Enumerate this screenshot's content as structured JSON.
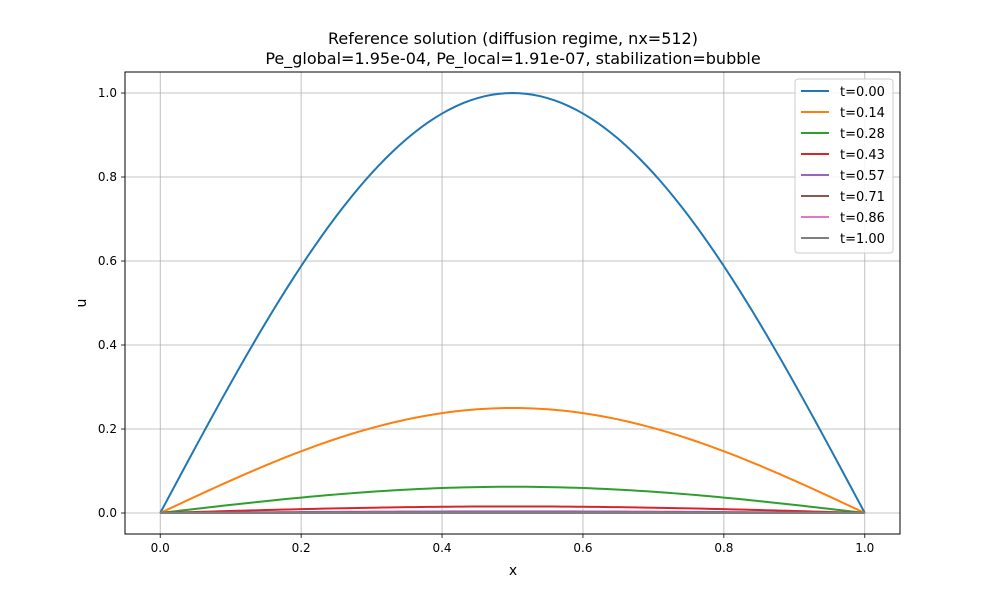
{
  "chart_data": {
    "type": "line",
    "title_line1": "Reference solution (diffusion regime, nx=512)",
    "title_line2": "Pe_global=1.95e-04, Pe_local=1.91e-07, stabilization=bubble",
    "xlabel": "x",
    "ylabel": "u",
    "xlim": [
      -0.05,
      1.05
    ],
    "ylim": [
      -0.05,
      1.05
    ],
    "grid": true,
    "legend_position": "top-right",
    "xticks": [
      0.0,
      0.2,
      0.4,
      0.6,
      0.8,
      1.0
    ],
    "xtick_labels": [
      "0.0",
      "0.2",
      "0.4",
      "0.6",
      "0.8",
      "1.0"
    ],
    "yticks": [
      0.0,
      0.2,
      0.4,
      0.6,
      0.8,
      1.0
    ],
    "ytick_labels": [
      "0.0",
      "0.2",
      "0.4",
      "0.6",
      "0.8",
      "1.0"
    ],
    "curve_shape": "sin(pi*x)",
    "samples": 101,
    "series": [
      {
        "name": "t=0.00",
        "amplitude": 1.0,
        "color": "#1f77b4"
      },
      {
        "name": "t=0.14",
        "amplitude": 0.25,
        "color": "#ff7f0e"
      },
      {
        "name": "t=0.28",
        "amplitude": 0.0625,
        "color": "#2ca02c"
      },
      {
        "name": "t=0.43",
        "amplitude": 0.0156,
        "color": "#d62728"
      },
      {
        "name": "t=0.57",
        "amplitude": 0.0039,
        "color": "#9467bd"
      },
      {
        "name": "t=0.71",
        "amplitude": 0.001,
        "color": "#8c564b"
      },
      {
        "name": "t=0.86",
        "amplitude": 0.0002,
        "color": "#e377c2"
      },
      {
        "name": "t=1.00",
        "amplitude": 0.0001,
        "color": "#7f7f7f"
      }
    ]
  }
}
